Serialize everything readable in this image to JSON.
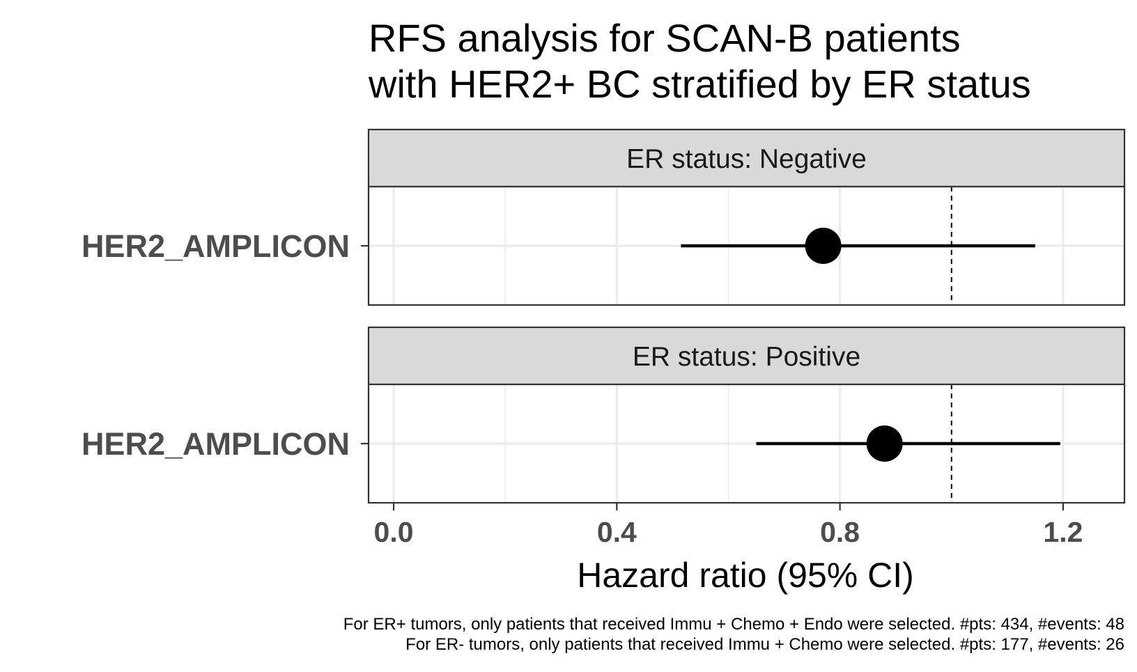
{
  "chart_data": {
    "type": "forest",
    "title_lines": [
      "RFS analysis for SCAN-B patients",
      "with HER2+ BC stratified by ER status"
    ],
    "xlabel": "Hazard ratio (95% CI)",
    "xlim": [
      -0.045,
      1.31
    ],
    "x_ticks": [
      0.0,
      0.4,
      0.8,
      1.2
    ],
    "x_tick_labels": [
      "0.0",
      "0.4",
      "0.8",
      "1.2"
    ],
    "x_minor_ticks": [
      0.2,
      0.6,
      1.0
    ],
    "reference_line": 1.0,
    "grid": true,
    "panels": [
      {
        "strip_label": "ER status: Negative",
        "rows": [
          {
            "label": "HER2_AMPLICON",
            "hr": 0.77,
            "ci_low": 0.515,
            "ci_high": 1.15
          }
        ]
      },
      {
        "strip_label": "ER status: Positive",
        "rows": [
          {
            "label": "HER2_AMPLICON",
            "hr": 0.88,
            "ci_low": 0.65,
            "ci_high": 1.195
          }
        ]
      }
    ],
    "caption_lines": [
      "For ER+ tumors, only patients that received Immu + Chemo + Endo were selected. #pts: 434, #events: 48",
      "For ER- tumors, only patients that received Immu + Chemo were selected. #pts: 177, #events: 26"
    ],
    "colors": {
      "point": "#000000",
      "strip_fill": "#d9d9d9",
      "panel_border": "#333333",
      "grid": "#ebebeb",
      "axis_text": "#4d4d4d"
    }
  }
}
